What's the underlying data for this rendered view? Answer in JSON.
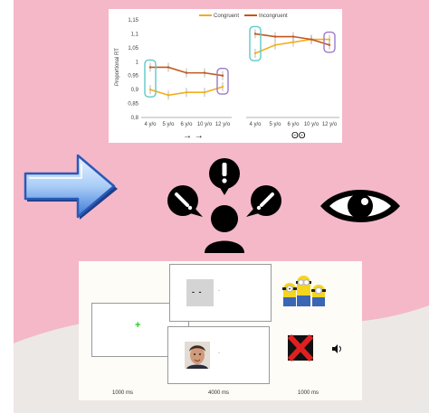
{
  "chart_data": {
    "type": "line",
    "series": [
      {
        "name": "Congruent",
        "color": "#f2ae1c",
        "left_values": [
          0.9,
          0.88,
          0.89,
          0.89,
          0.91
        ],
        "right_values": [
          1.03,
          1.06,
          1.07,
          1.08,
          1.08
        ]
      },
      {
        "name": "Incongruent",
        "color": "#c0571c",
        "left_values": [
          0.98,
          0.98,
          0.96,
          0.96,
          0.95
        ],
        "right_values": [
          1.1,
          1.09,
          1.09,
          1.08,
          1.06
        ]
      }
    ],
    "categories": [
      "4 y/o",
      "5 y/o",
      "6 y/o",
      "10 y/o",
      "12 y/o"
    ],
    "ylabel": "Proportional RT",
    "yticks": [
      "1,15",
      "1,1",
      "1,05",
      "1",
      "0,95",
      "0,9",
      "0,85",
      "0,8"
    ],
    "ylim": [
      0.8,
      1.15
    ],
    "left_group_symbol": "→ →",
    "right_group_symbol": "ʘʘ",
    "highlight_colors": {
      "start": "#5fc9c4",
      "end": "#9b79c9"
    }
  },
  "icons": {
    "arrow": "right-arrow-icon",
    "attention": [
      "alert-bubble-icon",
      "person-icon"
    ],
    "eye": "eye-icon"
  },
  "procedure": {
    "fixation_mark": "+",
    "fixation_color": "#22cc22",
    "cue_eyes": "- -",
    "trial_dot": ".",
    "durations": [
      "1000 ms",
      "4000 ms",
      "1000 ms"
    ]
  },
  "colors": {
    "background_pink": "#f4b8c9",
    "floor": "#ece8e6"
  }
}
